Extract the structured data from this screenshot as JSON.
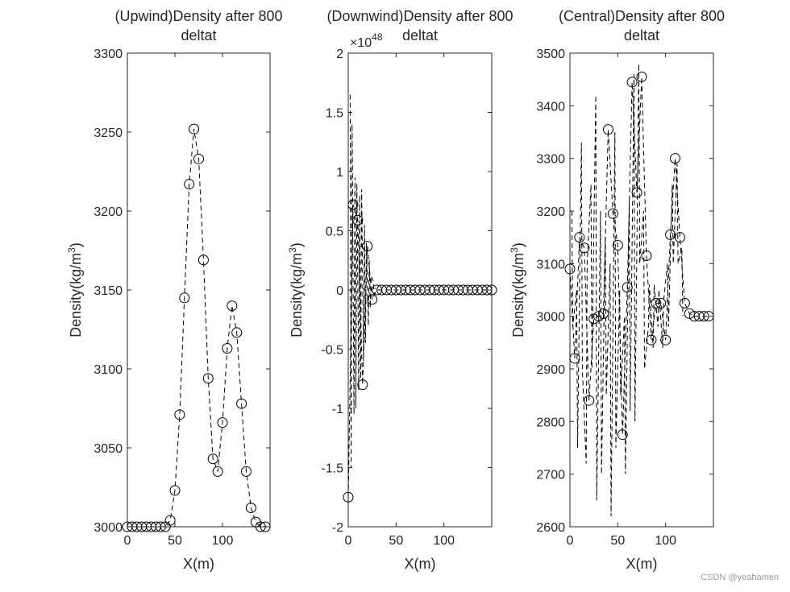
{
  "watermark": "CSDN @yeahamen",
  "chart_data": [
    {
      "type": "line",
      "title": [
        "(Upwind)Density after 800",
        "deltat"
      ],
      "xlabel": "X(m)",
      "ylabel": "Density(kg/m^3)",
      "xlim": [
        0,
        150
      ],
      "ylim": [
        3000,
        3300
      ],
      "xticks": [
        0,
        50,
        100
      ],
      "xtick_labels": [
        "0",
        "50",
        "100"
      ],
      "yticks": [
        3000,
        3050,
        3100,
        3150,
        3200,
        3250,
        3300
      ],
      "ytick_labels": [
        "3000",
        "3050",
        "3100",
        "3150",
        "3200",
        "3250",
        "3300"
      ],
      "exponent_label": "",
      "marker": "circle",
      "line_style": "dashed",
      "color": "#000000",
      "series": [
        {
          "x": [
            0,
            5,
            10,
            15,
            20,
            25,
            30,
            35,
            40,
            45,
            50,
            55,
            60,
            65,
            70,
            75,
            80,
            85,
            90,
            95,
            100,
            105,
            110,
            115,
            120,
            125,
            130,
            135,
            140,
            145
          ],
          "values": [
            3000,
            3000,
            3000,
            3000,
            3000,
            3000,
            3000,
            3000,
            3000,
            3004,
            3023,
            3071,
            3145,
            3217,
            3252,
            3233,
            3169,
            3094,
            3043,
            3035,
            3066,
            3113,
            3140,
            3123,
            3078,
            3035,
            3012,
            3003,
            3000,
            3000
          ]
        }
      ]
    },
    {
      "type": "line",
      "title": [
        "(Downwind)Density after 800",
        "deltat"
      ],
      "xlabel": "X(m)",
      "ylabel": "Density(kg/m^3)",
      "xlim": [
        0,
        150
      ],
      "ylim": [
        -2,
        2
      ],
      "xticks": [
        0,
        50,
        100
      ],
      "xtick_labels": [
        "0",
        "50",
        "100"
      ],
      "yticks": [
        -2,
        -1.5,
        -1,
        -0.5,
        0,
        0.5,
        1,
        1.5,
        2
      ],
      "ytick_labels": [
        "-2",
        "-1.5",
        "-1",
        "-0.5",
        "0",
        "0.5",
        "1",
        "1.5",
        "2"
      ],
      "exponent_label": "×10",
      "exponent_power": "48",
      "exponent_scale": "1e48",
      "marker": "circle",
      "line_style": "dashed",
      "color": "#000000",
      "series": [
        {
          "x": [
            0,
            5,
            10,
            15,
            20,
            25,
            30,
            35,
            40,
            45,
            50,
            55,
            60,
            65,
            70,
            75,
            80,
            85,
            90,
            95,
            100,
            105,
            110,
            115,
            120,
            125,
            130,
            135,
            140,
            145,
            150
          ],
          "values": [
            -1.75,
            0.72,
            0.59,
            -0.8,
            0.37,
            -0.08,
            0,
            0,
            0,
            0,
            0,
            0,
            0,
            0,
            0,
            0,
            0,
            0,
            0,
            0,
            0,
            0,
            0,
            0,
            0,
            0,
            0,
            0,
            0,
            0,
            0
          ]
        },
        {
          "x": [
            2,
            3,
            4,
            6,
            7,
            8,
            9,
            11,
            12,
            13,
            14,
            16,
            17,
            18,
            19,
            21,
            22,
            23,
            24,
            26,
            27,
            28
          ],
          "values": [
            1.65,
            -1.5,
            1.4,
            -1.05,
            0.95,
            -1.0,
            0.9,
            -0.85,
            0.8,
            -0.75,
            0.85,
            -0.6,
            0.55,
            -0.45,
            0.4,
            -0.3,
            0.25,
            -0.15,
            0.12,
            0.08,
            -0.04,
            0.02
          ]
        }
      ]
    },
    {
      "type": "line",
      "title": [
        "(Central)Density after 800",
        "deltat"
      ],
      "xlabel": "X(m)",
      "ylabel": "Density(kg/m^3)",
      "xlim": [
        0,
        150
      ],
      "ylim": [
        2600,
        3500
      ],
      "xticks": [
        0,
        50,
        100
      ],
      "xtick_labels": [
        "0",
        "50",
        "100"
      ],
      "yticks": [
        2600,
        2700,
        2800,
        2900,
        3000,
        3100,
        3200,
        3300,
        3400,
        3500
      ],
      "ytick_labels": [
        "2600",
        "2700",
        "2800",
        "2900",
        "3000",
        "3100",
        "3200",
        "3300",
        "3400",
        "3500"
      ],
      "exponent_label": "",
      "marker": "circle",
      "line_style": "dashed",
      "color": "#000000",
      "series": [
        {
          "x": [
            0,
            5,
            10,
            15,
            20,
            25,
            30,
            35,
            40,
            45,
            50,
            55,
            60,
            65,
            70,
            75,
            80,
            85,
            90,
            95,
            100,
            105,
            110,
            115,
            120,
            125,
            130,
            135,
            140,
            145
          ],
          "values": [
            3090,
            2920,
            3150,
            3130,
            2840,
            2995,
            3000,
            3005,
            3355,
            3195,
            3135,
            2775,
            3055,
            3445,
            3235,
            3455,
            3115,
            2955,
            3025,
            3025,
            2955,
            3155,
            3300,
            3150,
            3025,
            3005,
            3000,
            3000,
            3000,
            3000
          ]
        },
        {
          "x": [
            2,
            3,
            7,
            8,
            12,
            13,
            17,
            18,
            22,
            23,
            27,
            28,
            32,
            33,
            37,
            38,
            42,
            43,
            47,
            48,
            52,
            53,
            57,
            58,
            62,
            63,
            67,
            68,
            72,
            73,
            77,
            78,
            82,
            83,
            87,
            88,
            92,
            93,
            97,
            98,
            102,
            103,
            107,
            108,
            112,
            113,
            117,
            118
          ],
          "values": [
            3200,
            2980,
            3050,
            2750,
            3330,
            2900,
            2720,
            3100,
            3250,
            2900,
            3420,
            2650,
            3200,
            2700,
            3150,
            2850,
            3100,
            2620,
            3350,
            2750,
            3050,
            2850,
            3000,
            2700,
            3220,
            2820,
            3460,
            2800,
            3480,
            3100,
            3200,
            2900,
            2980,
            3060,
            2940,
            3060,
            2980,
            3050,
            2940,
            3030,
            3100,
            2980,
            3250,
            3100,
            3290,
            3100,
            3130,
            3000
          ]
        }
      ]
    }
  ]
}
